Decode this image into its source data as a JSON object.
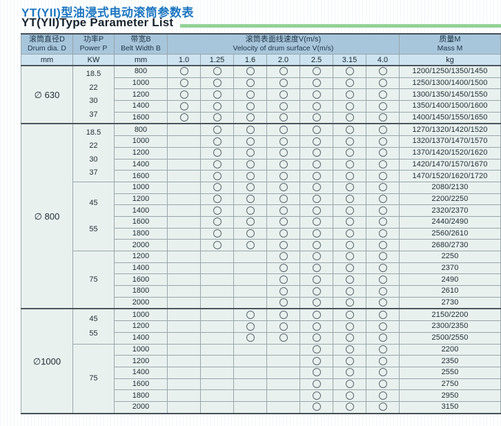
{
  "page": {
    "title_zh": "YT(YII)型油浸式电动滚筒参数表",
    "title_en": "YT(YII)Type Parameter List"
  },
  "table": {
    "headers": {
      "drum_zh": "滚筒直径D",
      "drum_en": "Drum dia. D",
      "power_zh": "功率P",
      "power_en": "Power P",
      "belt_zh": "带宽B",
      "belt_en": "Belt Width B",
      "velocity_zh": "滚筒表面线速度V(m/s)",
      "velocity_en": "Velocity of drum surface V(m/s)",
      "mass_zh": "质量M",
      "mass_en": "Mass M"
    },
    "units": {
      "drum": "mm",
      "power": "KW",
      "belt": "mm",
      "mass": "kg"
    },
    "speeds": [
      "1.0",
      "1.25",
      "1.6",
      "2.0",
      "2.5",
      "3.15",
      "4.0"
    ],
    "groups": [
      {
        "diameter": "∅ 630",
        "subgroups": [
          {
            "powers": [
              "18.5",
              "22",
              "30",
              "37"
            ],
            "rows": [
              {
                "belt": "800",
                "marks": [
                  1,
                  1,
                  1,
                  1,
                  1,
                  1,
                  1
                ],
                "mass": "1200/1250/1350/1450"
              },
              {
                "belt": "1000",
                "marks": [
                  1,
                  1,
                  1,
                  1,
                  1,
                  1,
                  1
                ],
                "mass": "1250/1300/1400/1500"
              },
              {
                "belt": "1200",
                "marks": [
                  1,
                  1,
                  1,
                  1,
                  1,
                  1,
                  1
                ],
                "mass": "1300/1350/1450/1550"
              },
              {
                "belt": "1400",
                "marks": [
                  1,
                  1,
                  1,
                  1,
                  1,
                  1,
                  1
                ],
                "mass": "1350/1400/1500/1600"
              },
              {
                "belt": "1600",
                "marks": [
                  1,
                  1,
                  1,
                  1,
                  1,
                  1,
                  1
                ],
                "mass": "1400/1450/1550/1650"
              }
            ]
          }
        ]
      },
      {
        "diameter": "∅ 800",
        "subgroups": [
          {
            "powers": [
              "18.5",
              "22",
              "30",
              "37"
            ],
            "rows": [
              {
                "belt": "800",
                "marks": [
                  0,
                  1,
                  1,
                  1,
                  1,
                  1,
                  1
                ],
                "mass": "1270/1320/1420/1520"
              },
              {
                "belt": "1000",
                "marks": [
                  0,
                  1,
                  1,
                  1,
                  1,
                  1,
                  1
                ],
                "mass": "1320/1370/1470/1570"
              },
              {
                "belt": "1200",
                "marks": [
                  0,
                  1,
                  1,
                  1,
                  1,
                  1,
                  1
                ],
                "mass": "1370/1420/1520/1620"
              },
              {
                "belt": "1400",
                "marks": [
                  0,
                  1,
                  1,
                  1,
                  1,
                  1,
                  1
                ],
                "mass": "1420/1470/1570/1670"
              },
              {
                "belt": "1600",
                "marks": [
                  0,
                  1,
                  1,
                  1,
                  1,
                  1,
                  1
                ],
                "mass": "1470/1520/1620/1720"
              }
            ]
          },
          {
            "powers": [
              "45",
              "55"
            ],
            "rows": [
              {
                "belt": "1000",
                "marks": [
                  0,
                  1,
                  1,
                  1,
                  1,
                  1,
                  1
                ],
                "mass": "2080/2130"
              },
              {
                "belt": "1200",
                "marks": [
                  0,
                  1,
                  1,
                  1,
                  1,
                  1,
                  1
                ],
                "mass": "2200/2250"
              },
              {
                "belt": "1400",
                "marks": [
                  0,
                  1,
                  1,
                  1,
                  1,
                  1,
                  1
                ],
                "mass": "2320/2370"
              },
              {
                "belt": "1600",
                "marks": [
                  0,
                  1,
                  1,
                  1,
                  1,
                  1,
                  1
                ],
                "mass": "2440/2490"
              },
              {
                "belt": "1800",
                "marks": [
                  0,
                  1,
                  1,
                  1,
                  1,
                  1,
                  1
                ],
                "mass": "2560/2610"
              },
              {
                "belt": "2000",
                "marks": [
                  0,
                  1,
                  1,
                  1,
                  1,
                  1,
                  1
                ],
                "mass": "2680/2730"
              }
            ]
          },
          {
            "powers": [
              "75"
            ],
            "rows": [
              {
                "belt": "1200",
                "marks": [
                  0,
                  0,
                  0,
                  1,
                  1,
                  1,
                  1
                ],
                "mass": "2250"
              },
              {
                "belt": "1400",
                "marks": [
                  0,
                  0,
                  0,
                  1,
                  1,
                  1,
                  1
                ],
                "mass": "2370"
              },
              {
                "belt": "1600",
                "marks": [
                  0,
                  0,
                  0,
                  1,
                  1,
                  1,
                  1
                ],
                "mass": "2490"
              },
              {
                "belt": "1800",
                "marks": [
                  0,
                  0,
                  0,
                  1,
                  1,
                  1,
                  1
                ],
                "mass": "2610"
              },
              {
                "belt": "2000",
                "marks": [
                  0,
                  0,
                  0,
                  1,
                  1,
                  1,
                  1
                ],
                "mass": "2730"
              }
            ]
          }
        ]
      },
      {
        "diameter": "∅1000",
        "subgroups": [
          {
            "powers": [
              "45",
              "55"
            ],
            "rows": [
              {
                "belt": "1000",
                "marks": [
                  0,
                  0,
                  1,
                  1,
                  1,
                  1,
                  1
                ],
                "mass": "2150/2200"
              },
              {
                "belt": "1200",
                "marks": [
                  0,
                  0,
                  1,
                  1,
                  1,
                  1,
                  1
                ],
                "mass": "2300/2350"
              },
              {
                "belt": "1400",
                "marks": [
                  0,
                  0,
                  1,
                  1,
                  1,
                  1,
                  1
                ],
                "mass": "2500/2550"
              }
            ]
          },
          {
            "powers": [
              "75"
            ],
            "rows": [
              {
                "belt": "1000",
                "marks": [
                  0,
                  0,
                  0,
                  0,
                  1,
                  1,
                  1
                ],
                "mass": "2200"
              },
              {
                "belt": "1200",
                "marks": [
                  0,
                  0,
                  0,
                  0,
                  1,
                  1,
                  1
                ],
                "mass": "2350"
              },
              {
                "belt": "1400",
                "marks": [
                  0,
                  0,
                  0,
                  0,
                  1,
                  1,
                  1
                ],
                "mass": "2550"
              },
              {
                "belt": "1600",
                "marks": [
                  0,
                  0,
                  0,
                  0,
                  1,
                  1,
                  1
                ],
                "mass": "2750"
              },
              {
                "belt": "1800",
                "marks": [
                  0,
                  0,
                  0,
                  0,
                  1,
                  1,
                  1
                ],
                "mass": "2950"
              },
              {
                "belt": "2000",
                "marks": [
                  0,
                  0,
                  0,
                  0,
                  1,
                  1,
                  1
                ],
                "mass": "3150"
              }
            ]
          }
        ]
      }
    ]
  }
}
